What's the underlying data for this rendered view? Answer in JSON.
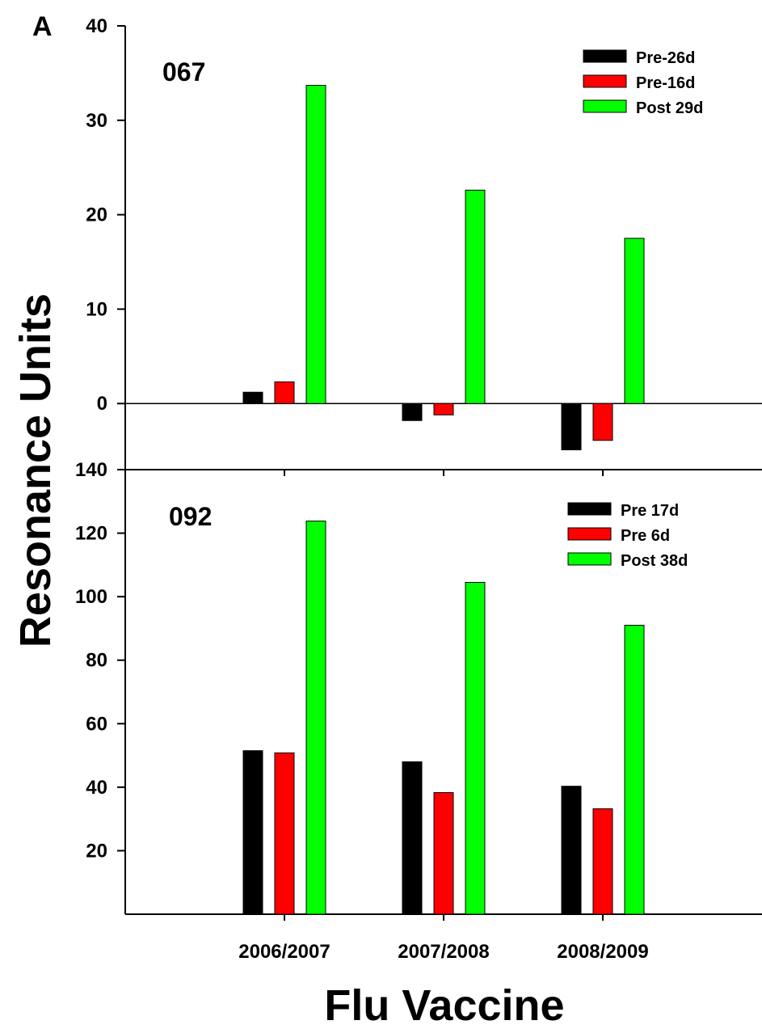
{
  "figure": {
    "panel_letter": "A",
    "ylabel": "Resonance Units",
    "xlabel": "Flu Vaccine"
  },
  "chart_data": [
    {
      "type": "bar",
      "panel_label": "067",
      "categories": [
        "2006/2007",
        "2007/2008",
        "2008/2009"
      ],
      "ylim": [
        -7,
        40
      ],
      "yticks": [
        0,
        10,
        20,
        30,
        40
      ],
      "legend_position": "top-right",
      "grid": false,
      "series": [
        {
          "name": "Pre-26d",
          "color": "#000000",
          "values": [
            1.2,
            -1.8,
            -4.9
          ]
        },
        {
          "name": "Pre-16d",
          "color": "#ff0000",
          "values": [
            2.3,
            -1.2,
            -3.9
          ]
        },
        {
          "name": "Post 29d",
          "color": "#00ff00",
          "values": [
            33.7,
            22.6,
            17.5
          ]
        }
      ]
    },
    {
      "type": "bar",
      "panel_label": "092",
      "categories": [
        "2006/2007",
        "2007/2008",
        "2008/2009"
      ],
      "ylim": [
        0,
        140
      ],
      "yticks": [
        20,
        40,
        60,
        80,
        100,
        120,
        140
      ],
      "legend_position": "top-right",
      "grid": false,
      "series": [
        {
          "name": "Pre 17d",
          "color": "#000000",
          "values": [
            51.5,
            48,
            40.3
          ]
        },
        {
          "name": "Pre 6d",
          "color": "#ff0000",
          "values": [
            50.8,
            38.3,
            33.2
          ]
        },
        {
          "name": "Post 38d",
          "color": "#00ff00",
          "values": [
            123.8,
            104.5,
            91
          ]
        }
      ]
    }
  ]
}
